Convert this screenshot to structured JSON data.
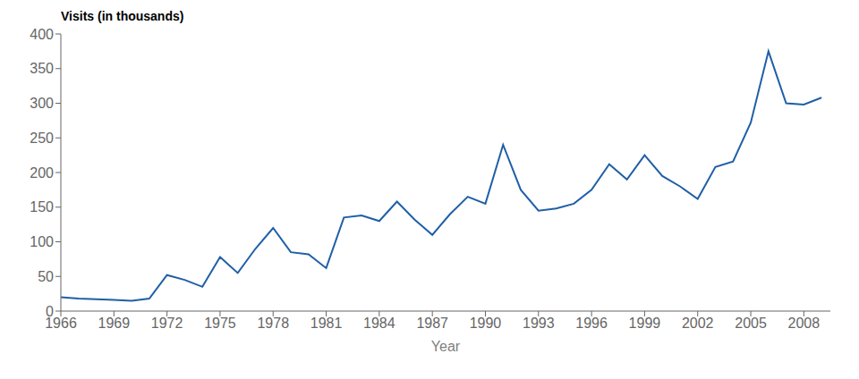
{
  "chart_data": {
    "type": "line",
    "xlabel": "Year",
    "ylabel": "Visits (in thousands)",
    "x": [
      1966,
      1967,
      1968,
      1969,
      1970,
      1971,
      1972,
      1973,
      1974,
      1975,
      1976,
      1977,
      1978,
      1979,
      1980,
      1981,
      1982,
      1983,
      1984,
      1985,
      1986,
      1987,
      1988,
      1989,
      1990,
      1991,
      1992,
      1993,
      1994,
      1995,
      1996,
      1997,
      1998,
      1999,
      2000,
      2001,
      2002,
      2003,
      2004,
      2005,
      2006,
      2007,
      2008,
      2009
    ],
    "values": [
      20,
      18,
      17,
      16,
      15,
      18,
      52,
      45,
      35,
      78,
      55,
      90,
      120,
      85,
      82,
      62,
      135,
      138,
      130,
      158,
      132,
      110,
      140,
      165,
      155,
      240,
      175,
      145,
      148,
      155,
      175,
      212,
      190,
      225,
      195,
      180,
      162,
      208,
      216,
      272,
      375,
      300,
      298,
      308
    ],
    "color": "#1f5fa6",
    "xlim": [
      1966,
      2009.5
    ],
    "ylim": [
      0,
      400
    ],
    "xticks": [
      1966,
      1969,
      1972,
      1975,
      1978,
      1981,
      1984,
      1987,
      1990,
      1993,
      1996,
      1999,
      2002,
      2005,
      2008
    ],
    "yticks": [
      0,
      50,
      100,
      150,
      200,
      250,
      300,
      350,
      400
    ],
    "grid": false
  }
}
